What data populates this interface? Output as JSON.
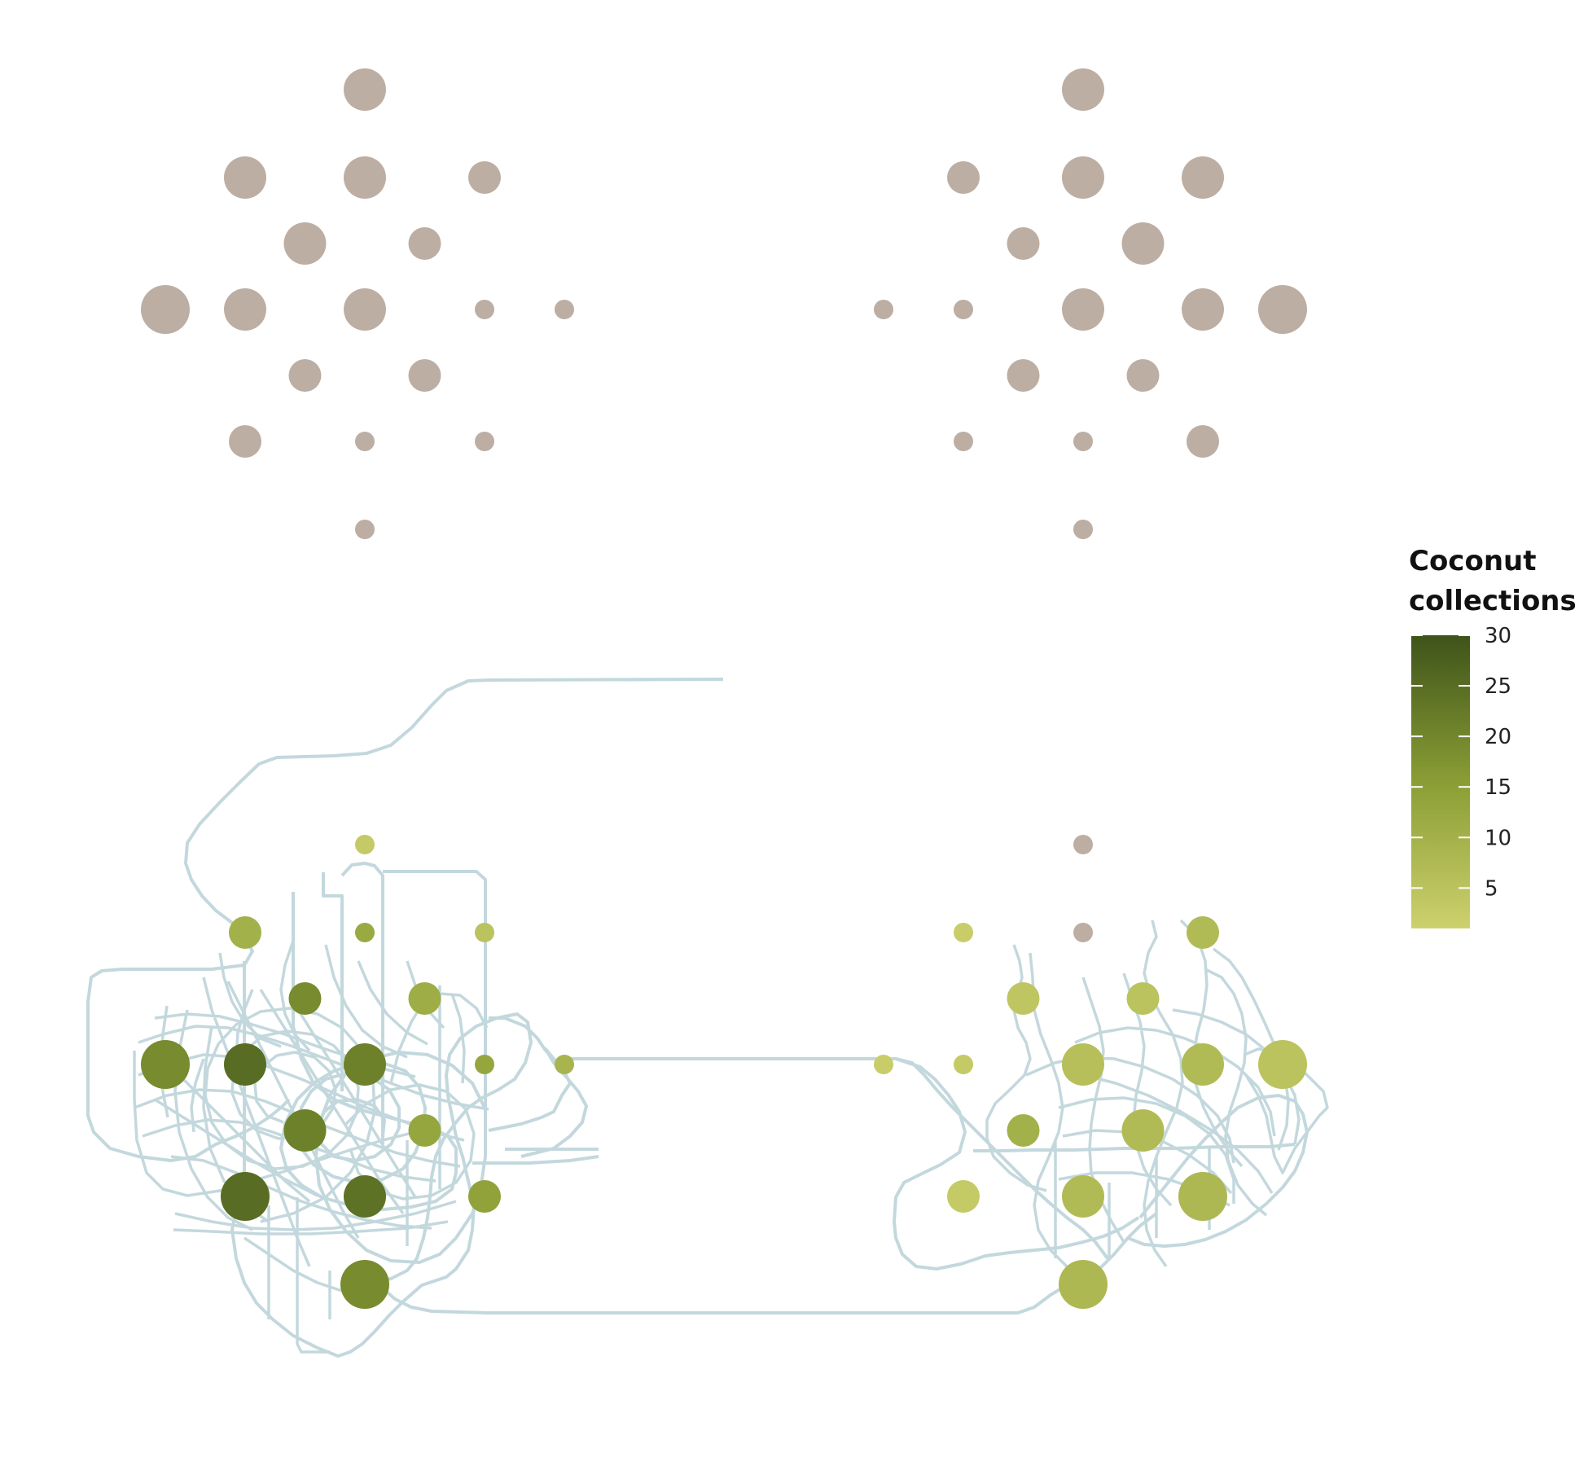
{
  "chart_data": {
    "type": "scatter",
    "legend": {
      "title_lines": [
        "Coconut",
        "collections"
      ],
      "ticks": [
        5,
        10,
        15,
        20,
        25,
        30
      ],
      "range": [
        1,
        30
      ],
      "position": "right",
      "color_low": "#cdd16d",
      "color_high": "#3e531a"
    },
    "colors": {
      "unvisited": "#bdaea3",
      "path": "#c3d8dd",
      "background": "#ffffff"
    },
    "size_levels": [
      1,
      2,
      3,
      4
    ],
    "panels": [
      {
        "name": "left-map",
        "points": [
          {
            "c": 0,
            "r": 0,
            "size": 3,
            "count": 0
          },
          {
            "c": -1.5,
            "r": 1,
            "size": 3,
            "count": 0
          },
          {
            "c": 0,
            "r": 1,
            "size": 3,
            "count": 0
          },
          {
            "c": 1.5,
            "r": 1,
            "size": 2,
            "count": 0
          },
          {
            "c": -0.75,
            "r": 1.75,
            "size": 3,
            "count": 0
          },
          {
            "c": 0.75,
            "r": 1.75,
            "size": 2,
            "count": 0
          },
          {
            "c": -2.5,
            "r": 2.5,
            "size": 4,
            "count": 0
          },
          {
            "c": -1.5,
            "r": 2.5,
            "size": 3,
            "count": 0
          },
          {
            "c": 0,
            "r": 2.5,
            "size": 3,
            "count": 0
          },
          {
            "c": 1.5,
            "r": 2.5,
            "size": 1,
            "count": 0
          },
          {
            "c": 2.5,
            "r": 2.5,
            "size": 1,
            "count": 0
          },
          {
            "c": -0.75,
            "r": 3.25,
            "size": 2,
            "count": 0
          },
          {
            "c": 0.75,
            "r": 3.25,
            "size": 2,
            "count": 0
          },
          {
            "c": -1.5,
            "r": 4,
            "size": 2,
            "count": 0
          },
          {
            "c": 0,
            "r": 4,
            "size": 1,
            "count": 0
          },
          {
            "c": 1.5,
            "r": 4,
            "size": 1,
            "count": 0
          },
          {
            "c": 0,
            "r": 5,
            "size": 1,
            "count": 0
          }
        ]
      },
      {
        "name": "right-map",
        "points": [
          {
            "c": 0,
            "r": 0,
            "size": 3,
            "count": 0
          },
          {
            "c": -1.5,
            "r": 1,
            "size": 2,
            "count": 0
          },
          {
            "c": 0,
            "r": 1,
            "size": 3,
            "count": 0
          },
          {
            "c": 1.5,
            "r": 1,
            "size": 3,
            "count": 0
          },
          {
            "c": -0.75,
            "r": 1.75,
            "size": 2,
            "count": 0
          },
          {
            "c": 0.75,
            "r": 1.75,
            "size": 3,
            "count": 0
          },
          {
            "c": -2.5,
            "r": 2.5,
            "size": 1,
            "count": 0
          },
          {
            "c": -1.5,
            "r": 2.5,
            "size": 1,
            "count": 0
          },
          {
            "c": 0,
            "r": 2.5,
            "size": 3,
            "count": 0
          },
          {
            "c": 1.5,
            "r": 2.5,
            "size": 3,
            "count": 0
          },
          {
            "c": 2.5,
            "r": 2.5,
            "size": 4,
            "count": 0
          },
          {
            "c": -0.75,
            "r": 3.25,
            "size": 2,
            "count": 0
          },
          {
            "c": 0.75,
            "r": 3.25,
            "size": 2,
            "count": 0
          },
          {
            "c": -1.5,
            "r": 4,
            "size": 1,
            "count": 0
          },
          {
            "c": 0,
            "r": 4,
            "size": 1,
            "count": 0
          },
          {
            "c": 1.5,
            "r": 4,
            "size": 2,
            "count": 0
          },
          {
            "c": 0,
            "r": 5,
            "size": 1,
            "count": 0
          }
        ]
      },
      {
        "name": "left-map-lower",
        "points": [
          {
            "c": 0,
            "r": 0,
            "size": 1,
            "count": 3
          },
          {
            "c": -1.5,
            "r": 1,
            "size": 2,
            "count": 10
          },
          {
            "c": 0,
            "r": 1,
            "size": 1,
            "count": 12
          },
          {
            "c": 1.5,
            "r": 1,
            "size": 1,
            "count": 5
          },
          {
            "c": -0.75,
            "r": 1.75,
            "size": 2,
            "count": 19
          },
          {
            "c": 0.75,
            "r": 1.75,
            "size": 2,
            "count": 11
          },
          {
            "c": -2.5,
            "r": 2.5,
            "size": 4,
            "count": 19
          },
          {
            "c": -1.5,
            "r": 2.5,
            "size": 3,
            "count": 25
          },
          {
            "c": 0,
            "r": 2.5,
            "size": 3,
            "count": 21
          },
          {
            "c": 1.5,
            "r": 2.5,
            "size": 1,
            "count": 13
          },
          {
            "c": 2.5,
            "r": 2.5,
            "size": 1,
            "count": 9
          },
          {
            "c": -0.75,
            "r": 3.25,
            "size": 3,
            "count": 21
          },
          {
            "c": 0.75,
            "r": 3.25,
            "size": 2,
            "count": 13
          },
          {
            "c": -1.5,
            "r": 4,
            "size": 4,
            "count": 25
          },
          {
            "c": 0,
            "r": 4,
            "size": 3,
            "count": 24
          },
          {
            "c": 1.5,
            "r": 4,
            "size": 2,
            "count": 14
          },
          {
            "c": 0,
            "r": 5,
            "size": 4,
            "count": 19
          }
        ]
      },
      {
        "name": "right-map-lower",
        "points": [
          {
            "c": 0,
            "r": 0,
            "size": 1,
            "count": 0
          },
          {
            "c": -1.5,
            "r": 1,
            "size": 1,
            "count": 2
          },
          {
            "c": 0,
            "r": 1,
            "size": 1,
            "count": 0
          },
          {
            "c": 1.5,
            "r": 1,
            "size": 2,
            "count": 7
          },
          {
            "c": -0.75,
            "r": 1.75,
            "size": 2,
            "count": 4
          },
          {
            "c": 0.75,
            "r": 1.75,
            "size": 2,
            "count": 5
          },
          {
            "c": -2.5,
            "r": 2.5,
            "size": 1,
            "count": 2
          },
          {
            "c": -1.5,
            "r": 2.5,
            "size": 1,
            "count": 3
          },
          {
            "c": 0,
            "r": 2.5,
            "size": 3,
            "count": 6
          },
          {
            "c": 1.5,
            "r": 2.5,
            "size": 3,
            "count": 7
          },
          {
            "c": 2.5,
            "r": 2.5,
            "size": 4,
            "count": 5
          },
          {
            "c": -0.75,
            "r": 3.25,
            "size": 2,
            "count": 10
          },
          {
            "c": 0.75,
            "r": 3.25,
            "size": 3,
            "count": 7
          },
          {
            "c": -1.5,
            "r": 4,
            "size": 2,
            "count": 3
          },
          {
            "c": 0,
            "r": 4,
            "size": 3,
            "count": 7
          },
          {
            "c": 1.5,
            "r": 4,
            "size": 4,
            "count": 8
          },
          {
            "c": 0,
            "r": 5,
            "size": 4,
            "count": 8
          }
        ]
      }
    ]
  }
}
